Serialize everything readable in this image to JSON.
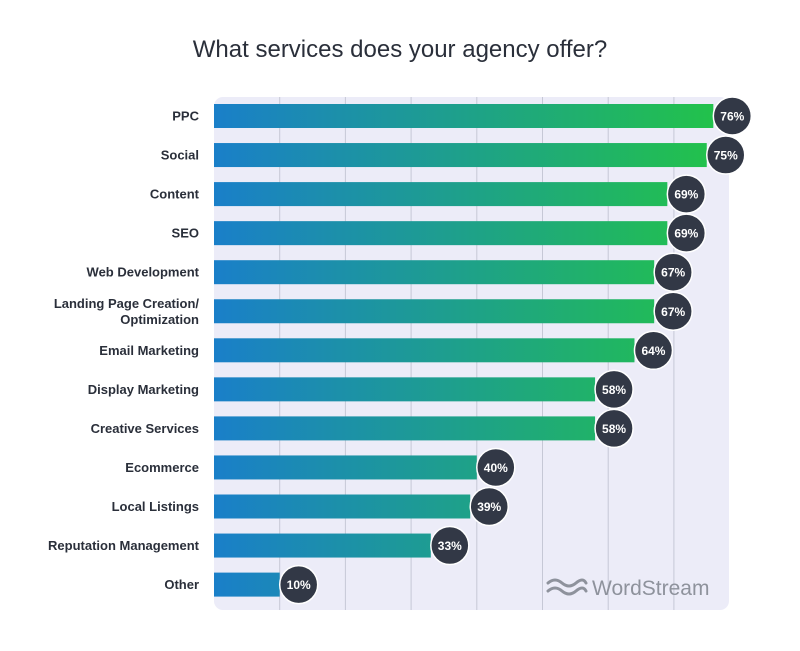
{
  "chart_data": {
    "type": "bar",
    "orientation": "horizontal",
    "title": "What services does your agency offer?",
    "categories": [
      "PPC",
      "Social",
      "Content",
      "SEO",
      "Web Development",
      "Landing Page Creation/\nOptimization",
      "Email Marketing",
      "Display Marketing",
      "Creative Services",
      "Ecommerce",
      "Local Listings",
      "Reputation Management",
      "Other"
    ],
    "values": [
      76,
      75,
      69,
      69,
      67,
      67,
      64,
      58,
      58,
      40,
      39,
      33,
      10
    ],
    "value_labels": [
      "76%",
      "75%",
      "69%",
      "69%",
      "67%",
      "67%",
      "64%",
      "58%",
      "58%",
      "40%",
      "39%",
      "33%",
      "10%"
    ],
    "xlim": [
      0,
      80
    ],
    "unit": "%",
    "grid": true,
    "xlabel": "",
    "ylabel": ""
  },
  "colors": {
    "bar_start": "#1a7fc9",
    "bar_end": "#22c24b",
    "plot_bg": "#ececf8",
    "grid": "#c6c8d6",
    "badge": "#323846",
    "badge_border": "#ffffff"
  },
  "brand": {
    "name": "WordStream",
    "icon": "wordstream-waves-icon"
  }
}
